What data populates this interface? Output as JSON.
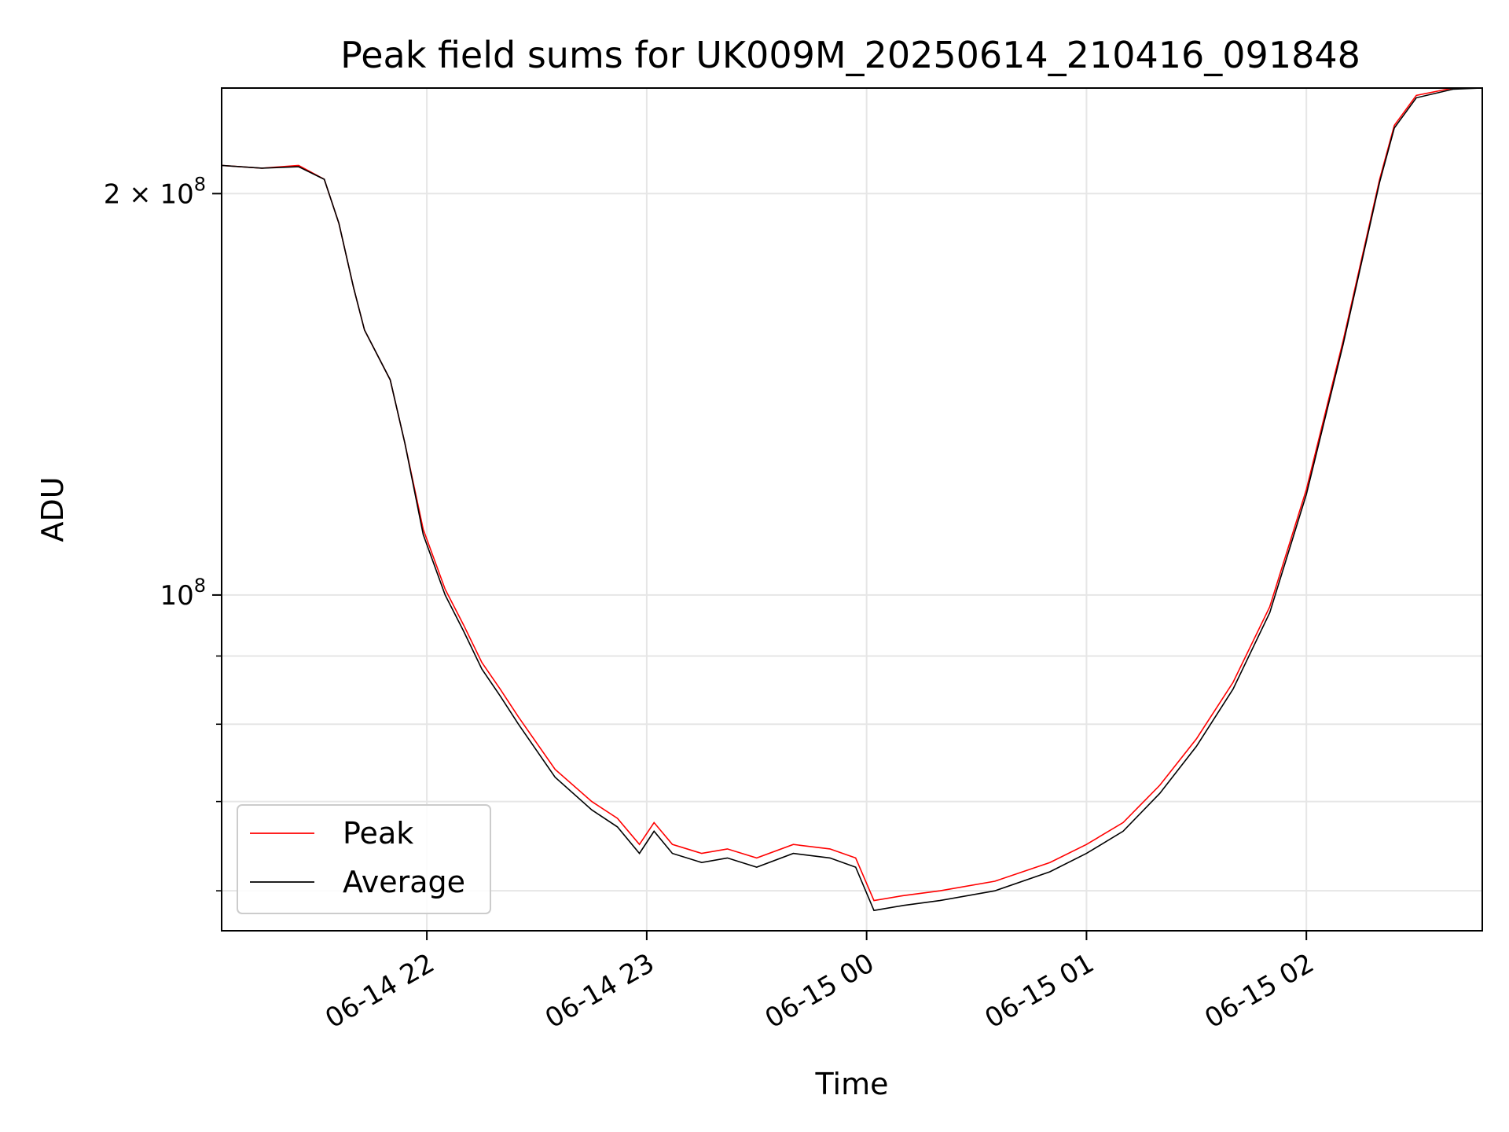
{
  "chart_data": {
    "type": "line",
    "title": "Peak field sums for UK009M_20250614_210416_091848",
    "xlabel": "Time",
    "ylabel": "ADU",
    "yscale": "log",
    "grid": true,
    "legend_position": "lower-left",
    "xlim": [
      "2025-06-14 21:04",
      "2025-06-15 02:48"
    ],
    "ylim": [
      56000000,
      240000000
    ],
    "x_ticks": [
      {
        "value": "2025-06-14 22:00",
        "label": "06-14 22"
      },
      {
        "value": "2025-06-14 23:00",
        "label": "06-14 23"
      },
      {
        "value": "2025-06-15 00:00",
        "label": "06-15 00"
      },
      {
        "value": "2025-06-15 01:00",
        "label": "06-15 01"
      },
      {
        "value": "2025-06-15 02:00",
        "label": "06-15 02"
      }
    ],
    "y_major_ticks": [
      {
        "value": 100000000,
        "base": "10",
        "exp": "8"
      },
      {
        "value": 200000000,
        "mant": "2",
        "base": "10",
        "exp": "8"
      }
    ],
    "y_minor_ticks": [
      60000000,
      70000000,
      80000000,
      90000000
    ],
    "series": [
      {
        "name": "Peak",
        "color": "#ff0000",
        "x": [
          "2025-06-14 21:04",
          "2025-06-14 21:15",
          "2025-06-14 21:25",
          "2025-06-14 21:32",
          "2025-06-14 21:36",
          "2025-06-14 21:40",
          "2025-06-14 21:43",
          "2025-06-14 21:50",
          "2025-06-14 21:54",
          "2025-06-14 21:59",
          "2025-06-14 22:05",
          "2025-06-14 22:10",
          "2025-06-14 22:15",
          "2025-06-14 22:20",
          "2025-06-14 22:25",
          "2025-06-14 22:35",
          "2025-06-14 22:45",
          "2025-06-14 22:52",
          "2025-06-14 22:58",
          "2025-06-14 23:02",
          "2025-06-14 23:07",
          "2025-06-14 23:15",
          "2025-06-14 23:22",
          "2025-06-14 23:30",
          "2025-06-14 23:40",
          "2025-06-14 23:50",
          "2025-06-14 23:57",
          "2025-06-15 00:02",
          "2025-06-15 00:10",
          "2025-06-15 00:20",
          "2025-06-15 00:35",
          "2025-06-15 00:50",
          "2025-06-15 01:00",
          "2025-06-15 01:10",
          "2025-06-15 01:20",
          "2025-06-15 01:30",
          "2025-06-15 01:40",
          "2025-06-15 01:50",
          "2025-06-15 02:00",
          "2025-06-15 02:10",
          "2025-06-15 02:20",
          "2025-06-15 02:24",
          "2025-06-15 02:30",
          "2025-06-15 02:40",
          "2025-06-15 02:48"
        ],
        "y": [
          210000000,
          209000000,
          210000000,
          205000000,
          190000000,
          170000000,
          158000000,
          145000000,
          130000000,
          112000000,
          101000000,
          95000000,
          89000000,
          85000000,
          81000000,
          74000000,
          70000000,
          68000000,
          65000000,
          67500000,
          65000000,
          64000000,
          64500000,
          63500000,
          65000000,
          64500000,
          63500000,
          59000000,
          59500000,
          60000000,
          61000000,
          63000000,
          65000000,
          67500000,
          72000000,
          78000000,
          86000000,
          98000000,
          120000000,
          155000000,
          205000000,
          225000000,
          237000000,
          240000000,
          240000000
        ]
      },
      {
        "name": "Average",
        "color": "#000000",
        "x": [
          "2025-06-14 21:04",
          "2025-06-14 21:15",
          "2025-06-14 21:25",
          "2025-06-14 21:32",
          "2025-06-14 21:36",
          "2025-06-14 21:40",
          "2025-06-14 21:43",
          "2025-06-14 21:50",
          "2025-06-14 21:54",
          "2025-06-14 21:59",
          "2025-06-14 22:05",
          "2025-06-14 22:10",
          "2025-06-14 22:15",
          "2025-06-14 22:20",
          "2025-06-14 22:25",
          "2025-06-14 22:35",
          "2025-06-14 22:45",
          "2025-06-14 22:52",
          "2025-06-14 22:58",
          "2025-06-14 23:02",
          "2025-06-14 23:07",
          "2025-06-14 23:15",
          "2025-06-14 23:22",
          "2025-06-14 23:30",
          "2025-06-14 23:40",
          "2025-06-14 23:50",
          "2025-06-14 23:57",
          "2025-06-15 00:02",
          "2025-06-15 00:10",
          "2025-06-15 00:20",
          "2025-06-15 00:35",
          "2025-06-15 00:50",
          "2025-06-15 01:00",
          "2025-06-15 01:10",
          "2025-06-15 01:20",
          "2025-06-15 01:30",
          "2025-06-15 01:40",
          "2025-06-15 01:50",
          "2025-06-15 02:00",
          "2025-06-15 02:10",
          "2025-06-15 02:20",
          "2025-06-15 02:24",
          "2025-06-15 02:30",
          "2025-06-15 02:40",
          "2025-06-15 02:48"
        ],
        "y": [
          210000000,
          209000000,
          209500000,
          205000000,
          190000000,
          170000000,
          158000000,
          145000000,
          130000000,
          111000000,
          100000000,
          94000000,
          88000000,
          84000000,
          80000000,
          73000000,
          69000000,
          67000000,
          64000000,
          66500000,
          64000000,
          63000000,
          63500000,
          62500000,
          64000000,
          63500000,
          62500000,
          58000000,
          58500000,
          59000000,
          60000000,
          62000000,
          64000000,
          66500000,
          71000000,
          77000000,
          85000000,
          97000000,
          119000000,
          154000000,
          204000000,
          224000000,
          236000000,
          239500000,
          240000000
        ]
      }
    ]
  }
}
